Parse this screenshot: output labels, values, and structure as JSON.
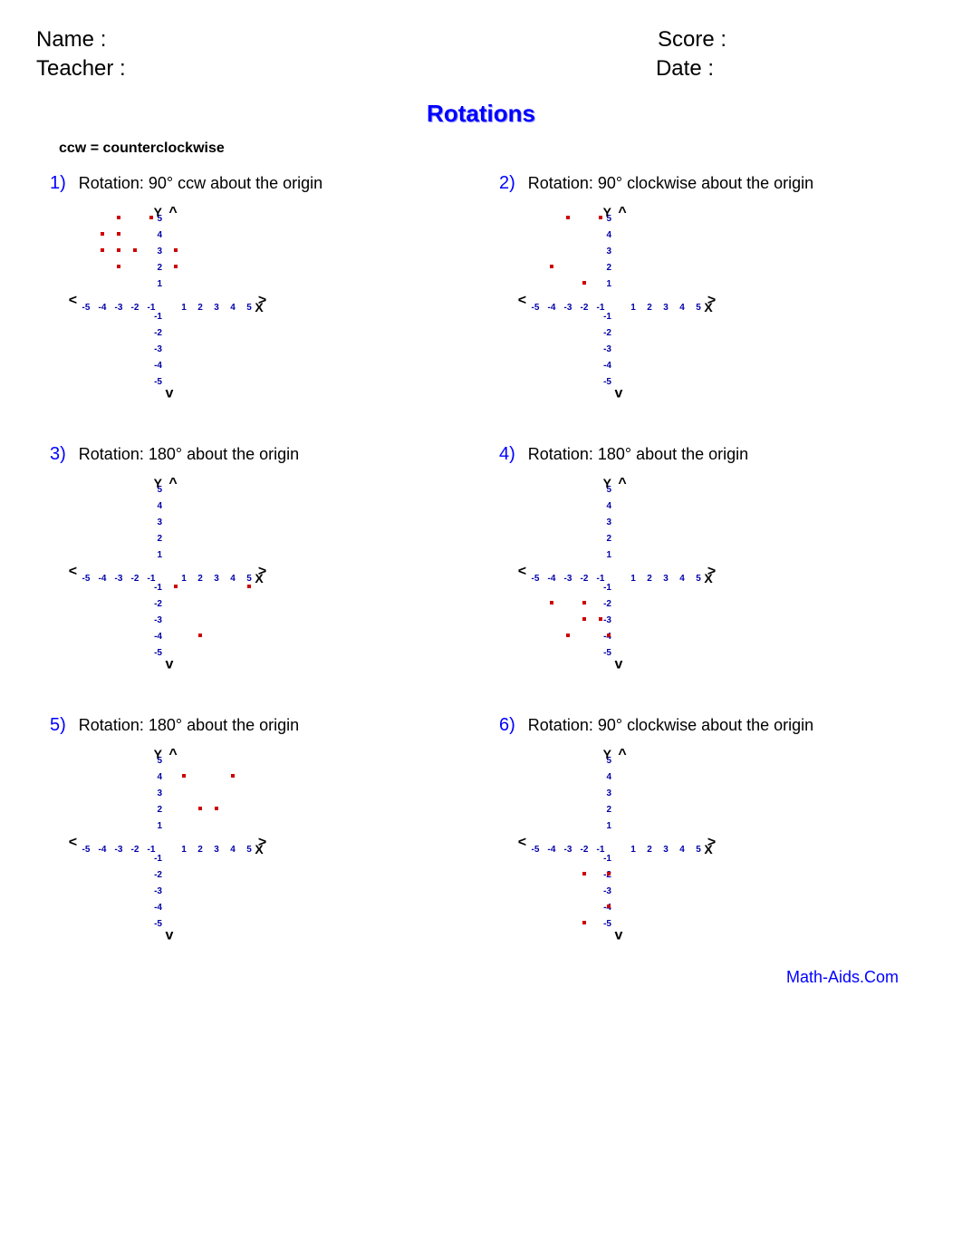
{
  "header": {
    "name_label": "Name :",
    "score_label": "Score :",
    "teacher_label": "Teacher :",
    "date_label": "Date :"
  },
  "title": "Rotations",
  "note": "ccw = counterclockwise",
  "footer": "Math-Aids.Com",
  "grid": {
    "min": -5,
    "max": 5,
    "unit": 18,
    "size": 220,
    "tick_color": "#0000aa",
    "axis_color": "#000000",
    "point_color": "#cc0000",
    "point_size": 4,
    "x_label": "X",
    "y_label": "Y",
    "arrow_up": "^",
    "arrow_down": "v",
    "arrow_left": "<",
    "arrow_right": ">"
  },
  "problems": [
    {
      "num": "1)",
      "desc": "Rotation: 90° ccw about the origin",
      "points": [
        [
          -3,
          5
        ],
        [
          -1,
          5
        ],
        [
          -4,
          4
        ],
        [
          -3,
          4
        ],
        [
          -4,
          3
        ],
        [
          -3,
          3
        ],
        [
          -2,
          3
        ],
        [
          0.5,
          3
        ],
        [
          -3,
          2
        ],
        [
          0.5,
          2
        ]
      ]
    },
    {
      "num": "2)",
      "desc": "Rotation: 90° clockwise about the origin",
      "points": [
        [
          -3,
          5
        ],
        [
          -1,
          5
        ],
        [
          -4,
          2
        ],
        [
          -2,
          1
        ]
      ]
    },
    {
      "num": "3)",
      "desc": "Rotation: 180° about the origin",
      "points": [
        [
          0.5,
          -1
        ],
        [
          5,
          -1
        ],
        [
          2,
          -4
        ]
      ]
    },
    {
      "num": "4)",
      "desc": "Rotation: 180° about the origin",
      "points": [
        [
          -4,
          -2
        ],
        [
          -2,
          -2
        ],
        [
          -2,
          -3
        ],
        [
          -1,
          -3
        ],
        [
          -3,
          -4
        ],
        [
          -0.5,
          -4
        ]
      ]
    },
    {
      "num": "5)",
      "desc": "Rotation: 180° about the origin",
      "points": [
        [
          1,
          4
        ],
        [
          4,
          4
        ],
        [
          2,
          2
        ],
        [
          3,
          2
        ]
      ]
    },
    {
      "num": "6)",
      "desc": "Rotation: 90° clockwise about the origin",
      "points": [
        [
          -2,
          -2
        ],
        [
          -0.5,
          -2
        ],
        [
          -0.5,
          -4
        ],
        [
          -2,
          -5
        ]
      ]
    }
  ]
}
